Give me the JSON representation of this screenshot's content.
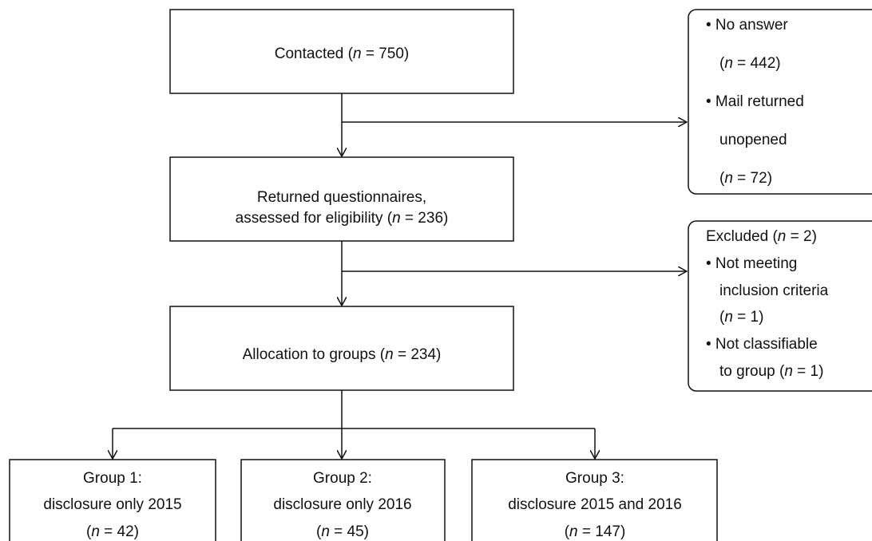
{
  "nodes": [
    {
      "lines": [
        "Contacted (n = 750)"
      ]
    },
    {
      "lines": [
        "Returned questionnaires,",
        "assessed for eligibility (n = 236)"
      ]
    },
    {
      "lines": [
        "Allocation to groups (n = 234)"
      ]
    }
  ],
  "side_notes": [
    {
      "lines": [
        "• No answer",
        "(n = 442)",
        "• Mail returned",
        "unopened",
        "(n = 72)"
      ]
    },
    {
      "lines": [
        "Excluded (n = 2)",
        "• Not meeting",
        "inclusion criteria",
        "(n = 1)",
        "• Not classifiable",
        "to group (n = 1)"
      ]
    }
  ],
  "groups": [
    {
      "lines": [
        "Group 1:",
        "disclosure only 2015",
        "(n = 42)"
      ]
    },
    {
      "lines": [
        "Group 2:",
        "disclosure only 2016",
        "(n = 45)"
      ]
    },
    {
      "lines": [
        "Group 3:",
        "disclosure 2015 and 2016",
        "(n = 147)"
      ]
    }
  ]
}
